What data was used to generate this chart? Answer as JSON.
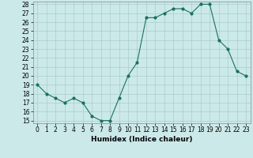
{
  "x": [
    0,
    1,
    2,
    3,
    4,
    5,
    6,
    7,
    8,
    9,
    10,
    11,
    12,
    13,
    14,
    15,
    16,
    17,
    18,
    19,
    20,
    21,
    22,
    23
  ],
  "y": [
    19,
    18,
    17.5,
    17,
    17.5,
    17,
    15.5,
    15,
    15,
    17.5,
    20,
    21.5,
    26.5,
    26.5,
    27,
    27.5,
    27.5,
    27,
    28,
    28,
    24,
    23,
    20.5,
    20
  ],
  "line_color": "#1a7060",
  "marker_color": "#1a7060",
  "bg_color": "#cce9e9",
  "grid_color": "#aacccc",
  "xlabel": "Humidex (Indice chaleur)",
  "ylim": [
    15,
    28
  ],
  "xlim": [
    -0.5,
    23.5
  ],
  "yticks": [
    15,
    16,
    17,
    18,
    19,
    20,
    21,
    22,
    23,
    24,
    25,
    26,
    27,
    28
  ],
  "xticks": [
    0,
    1,
    2,
    3,
    4,
    5,
    6,
    7,
    8,
    9,
    10,
    11,
    12,
    13,
    14,
    15,
    16,
    17,
    18,
    19,
    20,
    21,
    22,
    23
  ],
  "tick_fontsize": 5.5,
  "xlabel_fontsize": 6.5,
  "marker_size": 2.0,
  "line_width": 0.8
}
